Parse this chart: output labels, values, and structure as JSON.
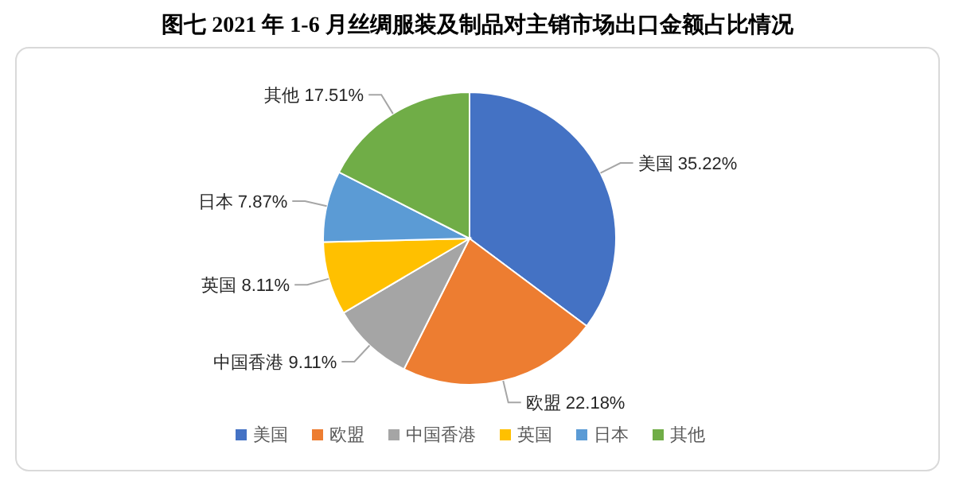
{
  "chart_data": {
    "type": "pie",
    "title": "图七  2021 年 1-6 月丝绸服装及制品对主销市场出口金额占比情况",
    "categories": [
      "美国",
      "欧盟",
      "中国香港",
      "英国",
      "日本",
      "其他"
    ],
    "values": [
      35.22,
      22.18,
      9.11,
      8.11,
      7.87,
      17.51
    ],
    "colors": [
      "#4472c4",
      "#ed7d31",
      "#a5a5a5",
      "#ffc000",
      "#5b9bd5",
      "#70ad47"
    ],
    "value_labels": [
      "35.22%",
      "22.18%",
      "9.11%",
      "8.11%",
      "7.87%",
      "17.51%"
    ],
    "legend": "bottom"
  }
}
